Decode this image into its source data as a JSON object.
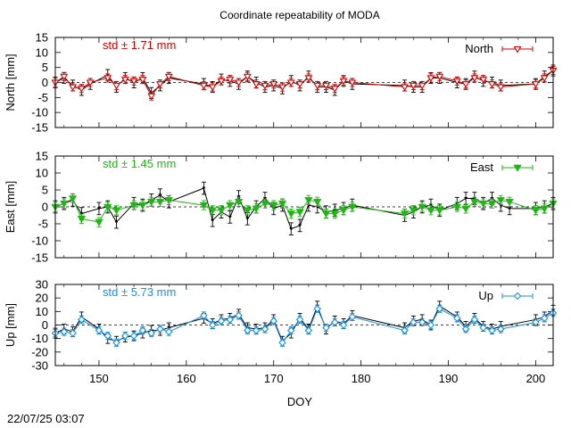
{
  "chart_data": {
    "type": "line",
    "title": "Coordinate repeatability of MODA",
    "xlabel": "DOY",
    "xlim": [
      145,
      202
    ],
    "xticks": [
      150,
      160,
      170,
      180,
      190,
      200
    ],
    "timestamp": "22/07/25 03:07",
    "panels": [
      {
        "name": "north",
        "ylabel": "North [mm]",
        "ylim": [
          -15,
          15
        ],
        "yticks": [
          -15,
          -10,
          -5,
          0,
          5,
          10,
          15
        ],
        "legend": "North",
        "std_label": "std ± 1.71 mm",
        "color": "#d40000",
        "marker": "triangle-down-open",
        "x": [
          145,
          146,
          147,
          148,
          149,
          151,
          152,
          153,
          154,
          155,
          156,
          157,
          158,
          162,
          163,
          164,
          165,
          166,
          167,
          168,
          169,
          170,
          171,
          172,
          173,
          174,
          175,
          176,
          177,
          178,
          179,
          185,
          186,
          187,
          188,
          189,
          191,
          192,
          193,
          194,
          195,
          196,
          200,
          201,
          202
        ],
        "y": [
          0,
          2,
          -1.5,
          -2,
          0,
          1.5,
          -1,
          1,
          0.5,
          1,
          -4.5,
          -0.5,
          2,
          -1,
          -1.5,
          0.5,
          1,
          0,
          2,
          -0.5,
          -1,
          -0.5,
          -1.5,
          0,
          -0.5,
          1.5,
          -1,
          -1,
          -2,
          0.5,
          0,
          -1.5,
          -1,
          -1,
          1.5,
          2,
          0.5,
          -0.5,
          1.5,
          1,
          -0.5,
          -1.5,
          -0.5,
          1.5,
          4
        ],
        "y_ref": [
          0,
          1.5,
          -1,
          -2.5,
          -0.5,
          2.5,
          -1.5,
          1.5,
          0,
          1.5,
          -3.5,
          -1,
          1.5,
          -0.5,
          -1.5,
          1,
          0.5,
          -0.5,
          2,
          0,
          -1.5,
          -1,
          -2,
          0.5,
          -1,
          2,
          -1.5,
          -1.5,
          -2.5,
          0.5,
          -0.5,
          -1,
          -1.5,
          -1.5,
          1.5,
          1.5,
          0,
          -0.5,
          2,
          0.5,
          0,
          -1,
          -0.5,
          2,
          4
        ]
      },
      {
        "name": "east",
        "ylabel": "East [mm]",
        "ylim": [
          -15,
          15
        ],
        "yticks": [
          -15,
          -10,
          -5,
          0,
          5,
          10,
          15
        ],
        "legend": "East",
        "std_label": "std ± 1.45 mm",
        "color": "#1fb714",
        "marker": "triangle-down-filled",
        "x": [
          145,
          146,
          147,
          148,
          150,
          151,
          152,
          154,
          155,
          156,
          157,
          158,
          162,
          163,
          164,
          165,
          166,
          167,
          168,
          169,
          170,
          171,
          172,
          173,
          174,
          175,
          176,
          177,
          178,
          179,
          185,
          186,
          187,
          188,
          189,
          191,
          192,
          193,
          194,
          195,
          196,
          197,
          200,
          201,
          202
        ],
        "y": [
          0,
          1,
          2.5,
          -3.5,
          -4.5,
          0,
          -1,
          0.5,
          0.5,
          1.5,
          1.5,
          2,
          0.5,
          -1,
          -1,
          0.5,
          1.5,
          -1,
          -0.5,
          1,
          0.5,
          1,
          -2,
          -1.5,
          2,
          1.5,
          -2,
          -2,
          -1,
          0,
          -2,
          -1,
          0,
          -1,
          -1,
          0,
          -0.5,
          1.5,
          1,
          1,
          2,
          1.5,
          -1,
          -0.5,
          1
        ],
        "y_ref": [
          0,
          1,
          2,
          -2,
          -0.5,
          0,
          -4.5,
          1,
          0.5,
          2,
          3.5,
          1.5,
          5.5,
          -4,
          -1.5,
          -3,
          3,
          -3.5,
          0,
          2.5,
          -0.5,
          0.5,
          -6.5,
          -5.5,
          0.5,
          0,
          -1.5,
          -1,
          -0.5,
          0.5,
          -2.5,
          -1.5,
          0,
          0.5,
          -1,
          1,
          2.5,
          2.5,
          1,
          2.5,
          0.5,
          -0.5,
          -0.5,
          0,
          1
        ]
      },
      {
        "name": "up",
        "ylabel": "Up [mm]",
        "ylim": [
          -30,
          30
        ],
        "yticks": [
          -30,
          -20,
          -10,
          0,
          10,
          20,
          30
        ],
        "legend": "Up",
        "std_label": "std ± 5.73 mm",
        "color": "#1a8fe6",
        "marker": "diamond-open",
        "x": [
          145,
          146,
          147,
          148,
          150,
          151,
          152,
          153,
          154,
          155,
          156,
          157,
          158,
          162,
          163,
          164,
          165,
          166,
          167,
          168,
          169,
          170,
          171,
          172,
          173,
          174,
          175,
          176,
          177,
          178,
          179,
          185,
          186,
          187,
          188,
          189,
          191,
          192,
          193,
          194,
          195,
          196,
          200,
          201,
          202
        ],
        "y": [
          -6,
          -5,
          -6,
          4,
          -4,
          -8,
          -13,
          -8,
          -8,
          -4,
          -6,
          -3,
          -5,
          7,
          0,
          3,
          4,
          7,
          -4,
          -4,
          -3,
          3,
          -13,
          -4,
          4,
          -4,
          12,
          -2,
          2,
          0,
          6,
          -4,
          2,
          2,
          0,
          12,
          5,
          -3,
          4,
          -2,
          -4,
          -3,
          2,
          5,
          9
        ],
        "y_ref": [
          -6,
          -3,
          -5,
          6,
          -3,
          -10,
          -12,
          -9,
          -8,
          -6,
          -4,
          -4,
          -2,
          5,
          1,
          4,
          5,
          8,
          -2,
          -3,
          -2,
          4,
          -12,
          -6,
          5,
          -3,
          14,
          -3,
          3,
          1,
          7,
          -2,
          3,
          4,
          0,
          14,
          6,
          -1,
          5,
          -1,
          -3,
          -1,
          4,
          6,
          11
        ]
      }
    ]
  }
}
